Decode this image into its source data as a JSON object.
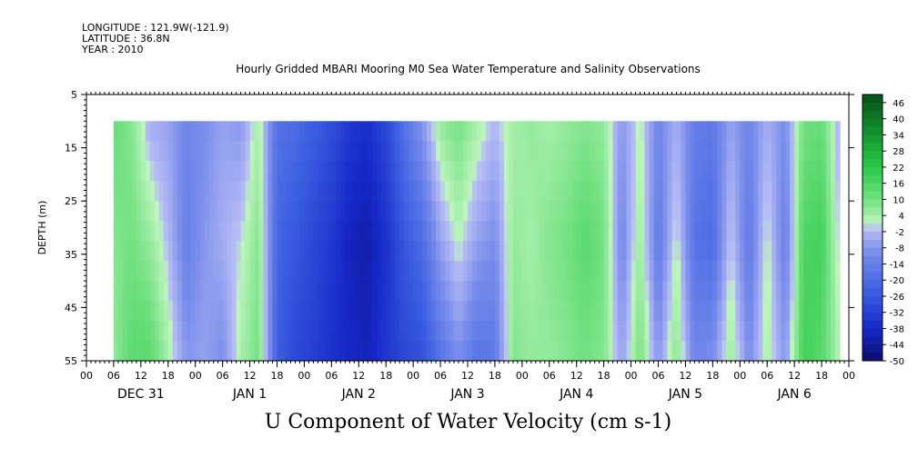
{
  "header": {
    "longitude": "LONGITUDE : 121.9W(-121.9)",
    "latitude": "LATITUDE : 36.8N",
    "year": "YEAR : 2010"
  },
  "chart_data": {
    "type": "heatmap",
    "title": "Hourly Gridded MBARI Mooring M0 Sea Water Temperature and Salinity Observations",
    "subtitle": "U Component of Water Velocity (cm s-1)",
    "xlabel": "",
    "ylabel": "DEPTH (m)",
    "ylim": [
      55,
      5
    ],
    "yticks": [
      5,
      15,
      25,
      35,
      45,
      55
    ],
    "x_hour_labels": [
      "00",
      "06",
      "12",
      "18",
      "00",
      "06",
      "12",
      "18",
      "00",
      "06",
      "12",
      "18",
      "00",
      "06",
      "12",
      "18",
      "00",
      "06",
      "12",
      "18",
      "00",
      "06",
      "12",
      "18",
      "00",
      "06",
      "12",
      "18",
      "00"
    ],
    "day_labels": [
      "DEC 31",
      "JAN  1",
      "JAN  2",
      "JAN  3",
      "JAN  4",
      "JAN  5",
      "JAN  6"
    ],
    "colorbar_labels": [
      "46",
      "40",
      "34",
      "28",
      "22",
      "16",
      "10",
      "4",
      "-2",
      "-8",
      "-14",
      "-20",
      "-26",
      "-32",
      "-38",
      "-44",
      "-50"
    ],
    "colorbar_range": [
      -50,
      49
    ],
    "data_start_hour": 6,
    "data_end_hour": 166,
    "depth_range": [
      10,
      55
    ],
    "profile": [
      {
        "hour": 6,
        "u": [
          12,
          8,
          6
        ]
      },
      {
        "hour": 10,
        "u": [
          8,
          10,
          14
        ]
      },
      {
        "hour": 14,
        "u": [
          -4,
          6,
          14
        ]
      },
      {
        "hour": 18,
        "u": [
          -6,
          -2,
          4
        ]
      },
      {
        "hour": 22,
        "u": [
          -12,
          -14,
          -8
        ]
      },
      {
        "hour": 26,
        "u": [
          -10,
          -8,
          -6
        ]
      },
      {
        "hour": 30,
        "u": [
          -6,
          -4,
          -10
        ]
      },
      {
        "hour": 34,
        "u": [
          -8,
          0,
          4
        ]
      },
      {
        "hour": 38,
        "u": [
          4,
          8,
          10
        ]
      },
      {
        "hour": 42,
        "u": [
          -18,
          -22,
          -24
        ]
      },
      {
        "hour": 46,
        "u": [
          -20,
          -26,
          -30
        ]
      },
      {
        "hour": 50,
        "u": [
          -24,
          -30,
          -32
        ]
      },
      {
        "hour": 54,
        "u": [
          -28,
          -34,
          -36
        ]
      },
      {
        "hour": 58,
        "u": [
          -34,
          -40,
          -38
        ]
      },
      {
        "hour": 62,
        "u": [
          -36,
          -42,
          -40
        ]
      },
      {
        "hour": 66,
        "u": [
          -30,
          -36,
          -34
        ]
      },
      {
        "hour": 70,
        "u": [
          -18,
          -26,
          -30
        ]
      },
      {
        "hour": 74,
        "u": [
          -8,
          -20,
          -28
        ]
      },
      {
        "hour": 78,
        "u": [
          6,
          -6,
          -18
        ]
      },
      {
        "hour": 82,
        "u": [
          10,
          2,
          -10
        ]
      },
      {
        "hour": 86,
        "u": [
          4,
          -6,
          -18
        ]
      },
      {
        "hour": 90,
        "u": [
          -2,
          -10,
          -16
        ]
      },
      {
        "hour": 94,
        "u": [
          4,
          6,
          8
        ]
      },
      {
        "hour": 98,
        "u": [
          6,
          4,
          6
        ]
      },
      {
        "hour": 102,
        "u": [
          4,
          8,
          6
        ]
      },
      {
        "hour": 106,
        "u": [
          6,
          10,
          8
        ]
      },
      {
        "hour": 110,
        "u": [
          8,
          14,
          10
        ]
      },
      {
        "hour": 114,
        "u": [
          6,
          10,
          8
        ]
      },
      {
        "hour": 118,
        "u": [
          -8,
          -12,
          -6
        ]
      },
      {
        "hour": 122,
        "u": [
          2,
          6,
          10
        ]
      },
      {
        "hour": 126,
        "u": [
          -12,
          -16,
          -8
        ]
      },
      {
        "hour": 130,
        "u": [
          -4,
          2,
          8
        ]
      },
      {
        "hour": 134,
        "u": [
          -14,
          -18,
          -12
        ]
      },
      {
        "hour": 138,
        "u": [
          -16,
          -20,
          -10
        ]
      },
      {
        "hour": 142,
        "u": [
          -6,
          0,
          6
        ]
      },
      {
        "hour": 146,
        "u": [
          -12,
          -16,
          -10
        ]
      },
      {
        "hour": 150,
        "u": [
          -4,
          2,
          4
        ]
      },
      {
        "hour": 154,
        "u": [
          -10,
          -14,
          -8
        ]
      },
      {
        "hour": 158,
        "u": [
          10,
          16,
          18
        ]
      },
      {
        "hour": 162,
        "u": [
          12,
          18,
          14
        ]
      },
      {
        "hour": 166,
        "u": [
          -4,
          -2,
          2
        ]
      }
    ]
  }
}
